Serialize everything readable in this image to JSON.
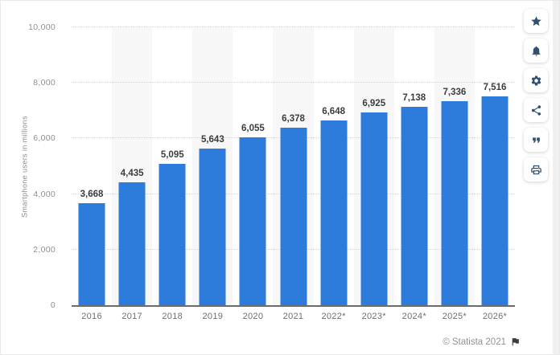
{
  "page": {
    "copyright": "© Statista 2021"
  },
  "sidebar": {
    "buttons": [
      {
        "name": "favorite",
        "icon": "star-icon"
      },
      {
        "name": "notifications",
        "icon": "bell-icon"
      },
      {
        "name": "settings",
        "icon": "gear-icon"
      },
      {
        "name": "share",
        "icon": "share-icon"
      },
      {
        "name": "cite",
        "icon": "quote-icon"
      },
      {
        "name": "print",
        "icon": "printer-icon"
      }
    ]
  },
  "colors": {
    "bar": "#2d7bdb",
    "band": "#f7f7f7",
    "icon": "#31506f",
    "flag": "#3c3c3c"
  },
  "chart_data": {
    "type": "bar",
    "title": "",
    "xlabel": "",
    "ylabel": "Smartphone users in millions",
    "ylim": [
      0,
      10000
    ],
    "yticks": [
      0,
      2000,
      4000,
      6000,
      8000,
      10000
    ],
    "ytick_labels": [
      "0",
      "2,000",
      "4,000",
      "6,000",
      "8,000",
      "10,000"
    ],
    "categories": [
      "2016",
      "2017",
      "2018",
      "2019",
      "2020",
      "2021",
      "2022*",
      "2023*",
      "2024*",
      "2025*",
      "2026*"
    ],
    "values": [
      3668,
      4435,
      5095,
      5643,
      6055,
      6378,
      6648,
      6925,
      7138,
      7336,
      7516
    ],
    "value_labels": [
      "3,668",
      "4,435",
      "5,095",
      "5,643",
      "6,055",
      "6,378",
      "6,648",
      "6,925",
      "7,138",
      "7,336",
      "7,516"
    ],
    "grid": "horizontal-dotted",
    "legend": "none",
    "band_pattern": "alternating-columns"
  }
}
